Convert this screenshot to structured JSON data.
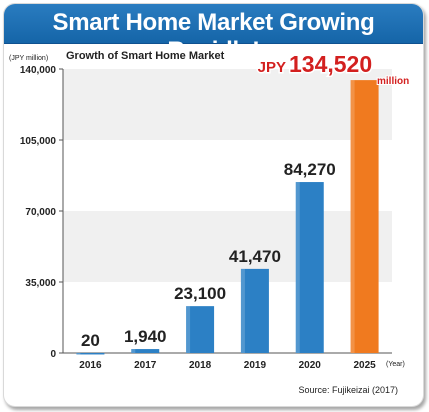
{
  "header": {
    "title": "Smart Home Market Growing Rapidly!"
  },
  "chart_data": {
    "type": "bar",
    "title": "Growth of Smart Home Market",
    "y_unit_label": "(JPY million)",
    "x_unit_label": "(Year)",
    "categories": [
      "2016",
      "2017",
      "2018",
      "2019",
      "2020",
      "2025"
    ],
    "values": [
      20,
      1940,
      23100,
      41470,
      84270,
      134520
    ],
    "data_labels": [
      "20",
      "1,940",
      "23,100",
      "41,470",
      "84,270",
      null
    ],
    "highlight": {
      "prefix": "JPY",
      "value": "134,520",
      "suffix": "million",
      "color": "#d3201f"
    },
    "yticks": [
      0,
      35000,
      70000,
      105000,
      140000
    ],
    "ytick_labels": [
      "0",
      "35,000",
      "70,000",
      "105,000",
      "140,000"
    ],
    "ylim": [
      0,
      140000
    ],
    "source": "Source: Fujikeizai (2017)",
    "colors": {
      "bar": "#2c80c5",
      "highlight_bar": "#f07a1f",
      "band": "#f0f0f0",
      "title_bar": "#1a6db3"
    }
  }
}
